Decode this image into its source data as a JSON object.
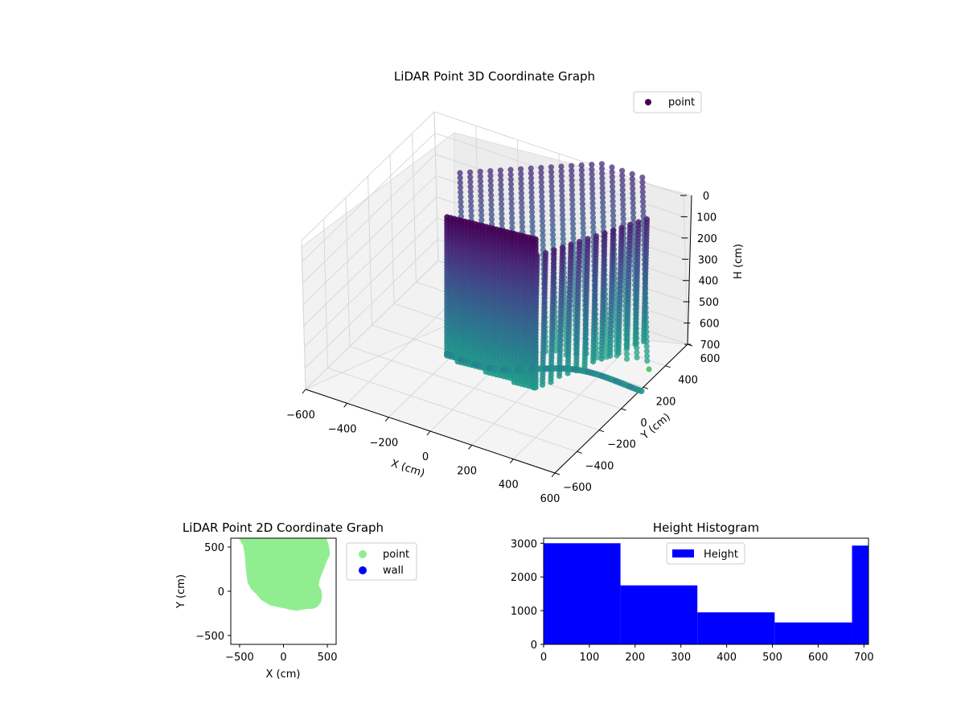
{
  "chart_data": [
    {
      "type": "scatter",
      "projection": "3d",
      "title": "LiDAR Point 3D Coordinate Graph",
      "xlabel": "X (cm)",
      "ylabel": "Y (cm)",
      "zlabel": "H (cm)",
      "x_ticks": [
        "−600",
        "−400",
        "−200",
        "0",
        "200",
        "400",
        "600"
      ],
      "y_ticks": [
        "−600",
        "−400",
        "−200",
        "0",
        "200",
        "400",
        "600"
      ],
      "z_ticks": [
        "0",
        "100",
        "200",
        "300",
        "400",
        "500",
        "600",
        "700"
      ],
      "xlim": [
        -600,
        600
      ],
      "ylim": [
        -600,
        600
      ],
      "zlim": [
        0,
        700
      ],
      "z_inverted": true,
      "legend": {
        "position": "upper-right",
        "entries": [
          {
            "label": "point",
            "color": "#440154"
          }
        ]
      },
      "colormap": "viridis",
      "grid": true
    },
    {
      "type": "scatter",
      "title": "LiDAR Point 2D Coordinate Graph",
      "xlabel": "X (cm)",
      "ylabel": "Y (cm)",
      "x_ticks": [
        "−500",
        "0",
        "500"
      ],
      "y_ticks": [
        "−500",
        "0",
        "500"
      ],
      "xlim": [
        -600,
        600
      ],
      "ylim": [
        -600,
        600
      ],
      "series": [
        {
          "name": "point",
          "color": "#90ee90",
          "outline": [
            [
              -500,
              600
            ],
            [
              -450,
              520
            ],
            [
              -430,
              400
            ],
            [
              -420,
              250
            ],
            [
              -400,
              100
            ],
            [
              -360,
              30
            ],
            [
              -300,
              -30
            ],
            [
              -250,
              -90
            ],
            [
              -200,
              -120
            ],
            [
              -150,
              -150
            ],
            [
              -100,
              -160
            ],
            [
              -40,
              -175
            ],
            [
              20,
              -185
            ],
            [
              80,
              -200
            ],
            [
              150,
              -210
            ],
            [
              210,
              -200
            ],
            [
              270,
              -190
            ],
            [
              330,
              -190
            ],
            [
              380,
              -170
            ],
            [
              420,
              -120
            ],
            [
              430,
              -50
            ],
            [
              420,
              20
            ],
            [
              390,
              60
            ],
            [
              400,
              120
            ],
            [
              420,
              180
            ],
            [
              450,
              250
            ],
            [
              480,
              330
            ],
            [
              520,
              420
            ],
            [
              510,
              510
            ],
            [
              480,
              600
            ]
          ]
        },
        {
          "name": "wall",
          "color": "#0000ff",
          "points": []
        }
      ],
      "legend": {
        "position": "outside-right",
        "entries": [
          {
            "label": "point",
            "color": "#90ee90"
          },
          {
            "label": "wall",
            "color": "#0000ff"
          }
        ]
      }
    },
    {
      "type": "bar",
      "subtype": "histogram",
      "title": "Height Histogram",
      "xlabel": "",
      "ylabel": "",
      "x_ticks": [
        "0",
        "100",
        "200",
        "300",
        "400",
        "500",
        "600",
        "700"
      ],
      "y_ticks": [
        "0",
        "1000",
        "2000",
        "3000"
      ],
      "xlim": [
        0,
        710
      ],
      "ylim": [
        0,
        3150
      ],
      "bins": [
        [
          0,
          168
        ],
        [
          168,
          336
        ],
        [
          336,
          505
        ],
        [
          505,
          674
        ],
        [
          674,
          710
        ]
      ],
      "values": [
        3000,
        1750,
        950,
        650,
        2930
      ],
      "color": "#0000ff",
      "legend": {
        "position": "upper-center",
        "entries": [
          {
            "label": "Height",
            "color": "#0000ff"
          }
        ]
      }
    }
  ]
}
